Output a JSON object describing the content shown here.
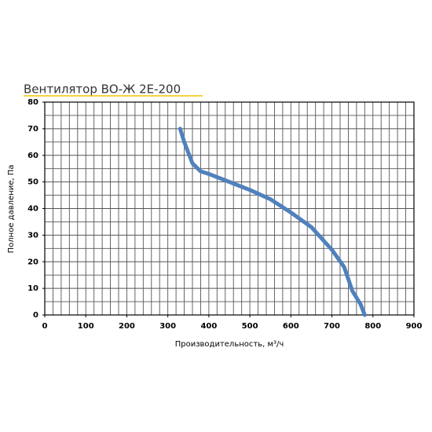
{
  "chart_data": {
    "type": "line",
    "title": "Вентилятор ВО-Ж 2Е-200",
    "x_label": "Производительность, м³/ч",
    "y_label": "Полное давление, Па",
    "series": [
      {
        "color": "#4f81bd",
        "x": [
          330,
          340,
          350,
          360,
          380,
          400,
          450,
          500,
          550,
          600,
          650,
          700,
          730,
          750,
          770,
          780
        ],
        "values": [
          70,
          65,
          61,
          57,
          54,
          53,
          50,
          47,
          43.5,
          38.5,
          33,
          24.5,
          18,
          9,
          4,
          0
        ]
      }
    ],
    "xlim": [
      0,
      900
    ],
    "xticks": [
      0,
      100,
      200,
      300,
      400,
      500,
      600,
      700,
      800,
      900
    ],
    "ylim": [
      0,
      80
    ],
    "yticks": [
      0,
      10,
      20,
      30,
      40,
      50,
      60,
      70,
      80
    ],
    "grid": true,
    "minor_grid": {
      "x": 20,
      "y": 5
    },
    "title_underline_color": "#f2c500"
  }
}
